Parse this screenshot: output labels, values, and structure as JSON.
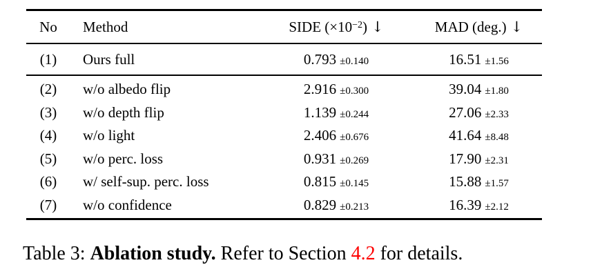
{
  "colors": {
    "background": "#ffffff",
    "text": "#000000",
    "rule": "#000000",
    "section_link_red": "#fe0000"
  },
  "table": {
    "headers": {
      "no": "No",
      "method": "Method",
      "side_prefix": "SIDE (×10",
      "side_exponent": "−2",
      "side_suffix": ")",
      "mad_label": "MAD (deg.)",
      "down_arrow": "↓"
    },
    "rows": [
      {
        "no": "(1)",
        "method": "Ours full",
        "side": "0.793",
        "side_pm": "±0.140",
        "mad": "16.51",
        "mad_pm": "±1.56"
      },
      {
        "no": "(2)",
        "method": "w/o albedo flip",
        "side": "2.916",
        "side_pm": "±0.300",
        "mad": "39.04",
        "mad_pm": "±1.80"
      },
      {
        "no": "(3)",
        "method": "w/o depth flip",
        "side": "1.139",
        "side_pm": "±0.244",
        "mad": "27.06",
        "mad_pm": "±2.33"
      },
      {
        "no": "(4)",
        "method": "w/o light",
        "side": "2.406",
        "side_pm": "±0.676",
        "mad": "41.64",
        "mad_pm": "±8.48"
      },
      {
        "no": "(5)",
        "method": "w/o perc. loss",
        "side": "0.931",
        "side_pm": "±0.269",
        "mad": "17.90",
        "mad_pm": "±2.31"
      },
      {
        "no": "(6)",
        "method": "w/ self-sup. perc. loss",
        "side": "0.815",
        "side_pm": "±0.145",
        "mad": "15.88",
        "mad_pm": "±1.57"
      },
      {
        "no": "(7)",
        "method": "w/o confidence",
        "side": "0.829",
        "side_pm": "±0.213",
        "mad": "16.39",
        "mad_pm": "±2.12"
      }
    ]
  },
  "caption": {
    "prefix": "Table 3: ",
    "bold": "Ablation study.",
    "middle": " Refer to Section ",
    "link": "4.2",
    "suffix": " for details."
  }
}
